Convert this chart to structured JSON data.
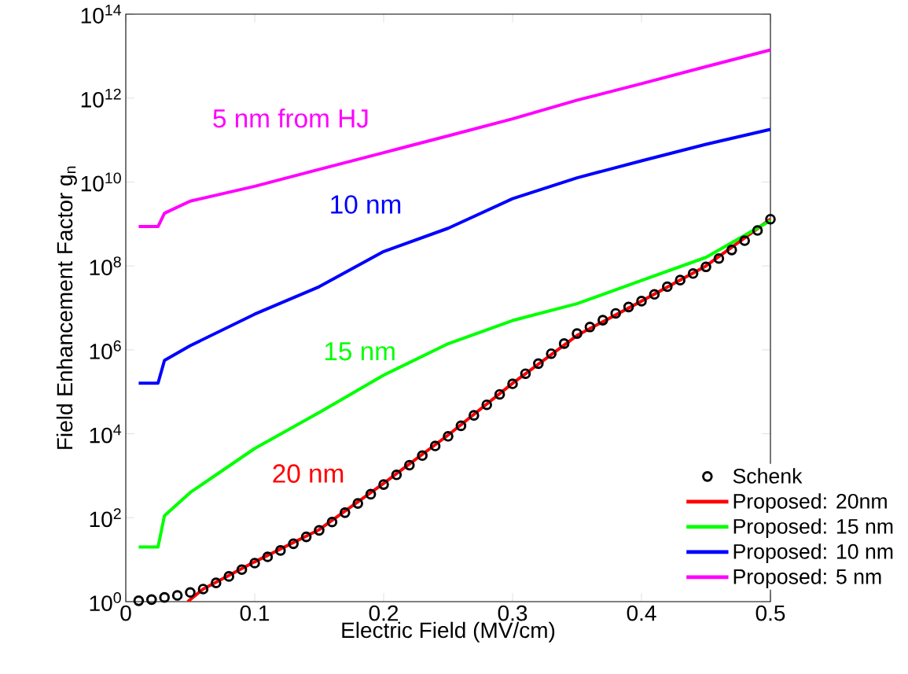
{
  "chart_data": {
    "type": "line",
    "xlabel": "Electric Field (MV/cm)",
    "ylabel": "Field Enhancement Factor g$_{n}$",
    "log": "y",
    "xlim": [
      0,
      0.5
    ],
    "xticks": [
      0,
      0.1,
      0.2,
      0.3,
      0.4,
      0.5
    ],
    "ylim": [
      1,
      100000000000000.0
    ],
    "yticks": [
      {
        "value": 1,
        "label": "10$^{0}$"
      },
      {
        "value": 100,
        "label": "10$^{2}$"
      },
      {
        "value": 10000,
        "label": "10$^{4}$"
      },
      {
        "value": 1000000,
        "label": "10$^{6}$"
      },
      {
        "value": 100000000,
        "label": "10$^{8}$"
      },
      {
        "value": 10000000000,
        "label": "10$^{10}$"
      },
      {
        "value": 1000000000000,
        "label": "10$^{12}$"
      },
      {
        "value": 100000000000000,
        "label": "10$^{14}$"
      }
    ],
    "grid": false,
    "legend": "bottom right",
    "series": [
      {
        "name": "Schenk",
        "type": "scatter",
        "marker": "circle",
        "color": "#000000",
        "x": [
          0.01,
          0.02,
          0.03,
          0.04,
          0.05,
          0.06,
          0.07,
          0.08,
          0.09,
          0.1,
          0.11,
          0.12,
          0.13,
          0.14,
          0.15,
          0.16,
          0.17,
          0.18,
          0.19,
          0.2,
          0.21,
          0.22,
          0.23,
          0.24,
          0.25,
          0.26,
          0.27,
          0.28,
          0.29,
          0.3,
          0.31,
          0.32,
          0.33,
          0.34,
          0.35,
          0.36,
          0.37,
          0.38,
          0.39,
          0.4,
          0.41,
          0.42,
          0.43,
          0.44,
          0.45,
          0.46,
          0.47,
          0.48,
          0.49,
          0.5
        ],
        "values": [
          1.05,
          1.12,
          1.26,
          1.41,
          1.66,
          2.0,
          2.8,
          4.0,
          5.8,
          8.3,
          11.7,
          16.6,
          24,
          35,
          50,
          79,
          132,
          219,
          363,
          617,
          1050,
          1780,
          3020,
          5130,
          8710,
          15500,
          27500,
          49000,
          87000,
          155000,
          270000,
          470000,
          810000,
          1410000,
          2450000,
          3500000,
          5100000,
          7400000,
          10500000,
          14500000,
          21000000,
          32000000,
          46000000,
          66000000,
          95000000,
          150000000,
          240000000,
          400000000,
          700000000,
          1300000000
        ]
      },
      {
        "name": "Proposed: 20nm",
        "color": "#ff0000",
        "x": [
          0.048,
          0.06,
          0.1,
          0.15,
          0.2,
          0.25,
          0.3,
          0.35,
          0.4,
          0.45,
          0.5
        ],
        "values": [
          1,
          2,
          8.9,
          52,
          660,
          9300,
          160000,
          2200000,
          14500000,
          100000000,
          1300000000
        ]
      },
      {
        "name": "Proposed: 15 nm",
        "color": "#00ff00",
        "x": [
          0.01,
          0.025,
          0.03,
          0.05,
          0.1,
          0.15,
          0.2,
          0.25,
          0.3,
          0.35,
          0.4,
          0.45,
          0.5
        ],
        "values": [
          20,
          20,
          112,
          400,
          4470,
          32000,
          250000,
          1400000,
          5000000,
          12600000,
          45000000,
          160000000,
          1200000000
        ]
      },
      {
        "name": "Proposed: 10 nm",
        "color": "#0000ff",
        "x": [
          0.01,
          0.025,
          0.03,
          0.05,
          0.1,
          0.15,
          0.2,
          0.25,
          0.3,
          0.35,
          0.4,
          0.45,
          0.5
        ],
        "values": [
          160000,
          160000,
          560000,
          1260000,
          7100000,
          32000000,
          220000000,
          790000000,
          4000000000,
          12600000000,
          32000000000,
          79000000000,
          180000000000
        ]
      },
      {
        "name": "Proposed: 5 nm",
        "color": "#ff00ff",
        "x": [
          0.01,
          0.025,
          0.03,
          0.05,
          0.1,
          0.15,
          0.2,
          0.25,
          0.3,
          0.35,
          0.4,
          0.45,
          0.5
        ],
        "values": [
          870000000,
          870000000,
          1800000000,
          3500000000,
          7900000000,
          20000000000,
          50000000000,
          126000000000,
          320000000000,
          890000000000,
          2200000000000,
          5600000000000,
          14000000000000
        ]
      }
    ],
    "annotations": [
      "5 nm from HJ",
      "10 nm",
      "15 nm",
      "20 nm"
    ]
  }
}
